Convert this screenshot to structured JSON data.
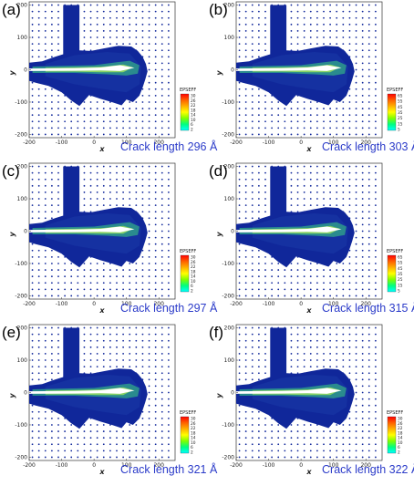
{
  "figure": {
    "panels": [
      {
        "id": "a",
        "label": "(a)",
        "caption": "Crack length 296 Å",
        "legend_title": "EPSEFF",
        "legend_ticks": [
          "30",
          "26",
          "22",
          "18",
          "14",
          "10",
          "6",
          "2"
        ]
      },
      {
        "id": "b",
        "label": "(b)",
        "caption": "Crack length 303 Å",
        "legend_title": "EPSEFF",
        "legend_ticks": [
          "65",
          "55",
          "45",
          "35",
          "25",
          "15",
          "5"
        ]
      },
      {
        "id": "c",
        "label": "(c)",
        "caption": "Crack length 297 Å",
        "legend_title": "EPSEFF",
        "legend_ticks": [
          "30",
          "26",
          "22",
          "18",
          "14",
          "10",
          "6",
          "2"
        ]
      },
      {
        "id": "d",
        "label": "(d)",
        "caption": "Crack length 315 Å",
        "legend_title": "EPSEFF",
        "legend_ticks": [
          "65",
          "55",
          "45",
          "35",
          "25",
          "15",
          "5"
        ]
      },
      {
        "id": "e",
        "label": "(e)",
        "caption": "Crack length 321 Å",
        "legend_title": "EPSEFF",
        "legend_ticks": [
          "30",
          "26",
          "22",
          "18",
          "14",
          "10",
          "6",
          "2"
        ]
      },
      {
        "id": "f",
        "label": "(f)",
        "caption": "Crack length 322 Å",
        "legend_title": "EPSEFF",
        "legend_ticks": [
          "30",
          "26",
          "22",
          "18",
          "14",
          "10",
          "6",
          "2"
        ]
      }
    ],
    "xlabel": "x",
    "ylabel": "y",
    "x_ticks": [
      "-200",
      "-100",
      "0",
      "100",
      "200"
    ],
    "y_ticks": [
      "200",
      "100",
      "0",
      "-100",
      "-200"
    ],
    "colors": {
      "material": "#10279a",
      "material_dark": "#0a1f7a",
      "crack": "#ffffff",
      "caption": "#2b3bc9"
    }
  }
}
